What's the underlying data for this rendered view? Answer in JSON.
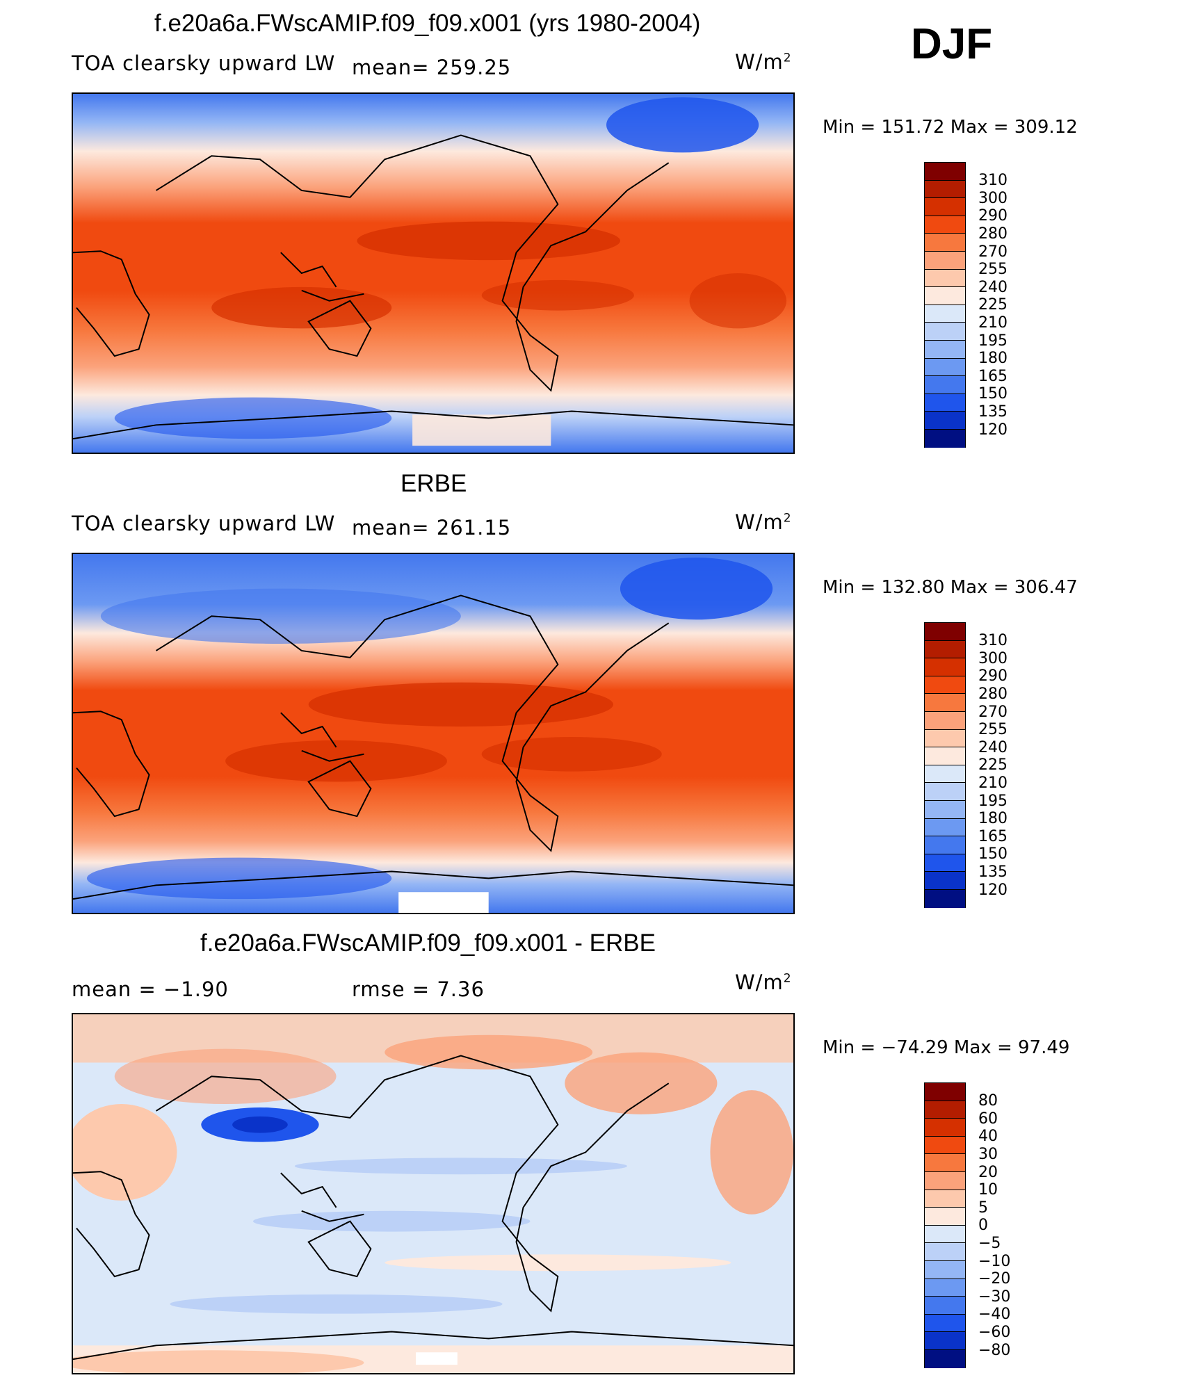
{
  "header": {
    "season": "DJF"
  },
  "panels": [
    {
      "title": "f.e20a6a.FWscAMIP.f09_f09.x001 (yrs 1980-2004)",
      "variable": "TOA clearsky upward LW",
      "stat_text": "mean=  259.25",
      "units": "W/m",
      "units_sup": "2",
      "minmax": "Min  =  151.72  Max  =  309.12",
      "colorbar": {
        "labels": [
          "310",
          "300",
          "290",
          "280",
          "270",
          "255",
          "240",
          "225",
          "210",
          "195",
          "180",
          "165",
          "150",
          "135",
          "120"
        ],
        "colors": [
          "#7f0000",
          "#b31d00",
          "#d53000",
          "#f04a10",
          "#f7783e",
          "#fba27b",
          "#fdc9ad",
          "#fde9de",
          "#dbe8f9",
          "#bcd1f7",
          "#94b6f5",
          "#6c99f2",
          "#4478ee",
          "#1f55ec",
          "#0a33c9",
          "#000f82"
        ]
      }
    },
    {
      "title": "ERBE",
      "variable": "TOA clearsky upward LW",
      "stat_text": "mean=  261.15",
      "units": "W/m",
      "units_sup": "2",
      "minmax": "Min  =  132.80  Max  =  306.47",
      "colorbar": {
        "labels": [
          "310",
          "300",
          "290",
          "280",
          "270",
          "255",
          "240",
          "225",
          "210",
          "195",
          "180",
          "165",
          "150",
          "135",
          "120"
        ],
        "colors": [
          "#7f0000",
          "#b31d00",
          "#d53000",
          "#f04a10",
          "#f7783e",
          "#fba27b",
          "#fdc9ad",
          "#fde9de",
          "#dbe8f9",
          "#bcd1f7",
          "#94b6f5",
          "#6c99f2",
          "#4478ee",
          "#1f55ec",
          "#0a33c9",
          "#000f82"
        ]
      }
    },
    {
      "title": "f.e20a6a.FWscAMIP.f09_f09.x001 - ERBE",
      "variable": "mean  =     −1.90",
      "stat_text": "rmse  =      7.36",
      "units": "W/m",
      "units_sup": "2",
      "minmax": "Min  =  −74.29  Max  =    97.49",
      "colorbar": {
        "labels": [
          "80",
          "60",
          "40",
          "30",
          "20",
          "10",
          "5",
          "0",
          "−5",
          "−10",
          "−20",
          "−30",
          "−40",
          "−60",
          "−80"
        ],
        "colors": [
          "#7f0000",
          "#b31d00",
          "#d53000",
          "#f04a10",
          "#f7783e",
          "#fba27b",
          "#fdc9ad",
          "#fde9de",
          "#dbe8f9",
          "#bcd1f7",
          "#94b6f5",
          "#6c99f2",
          "#4478ee",
          "#1f55ec",
          "#0a33c9",
          "#000f82"
        ]
      }
    }
  ]
}
